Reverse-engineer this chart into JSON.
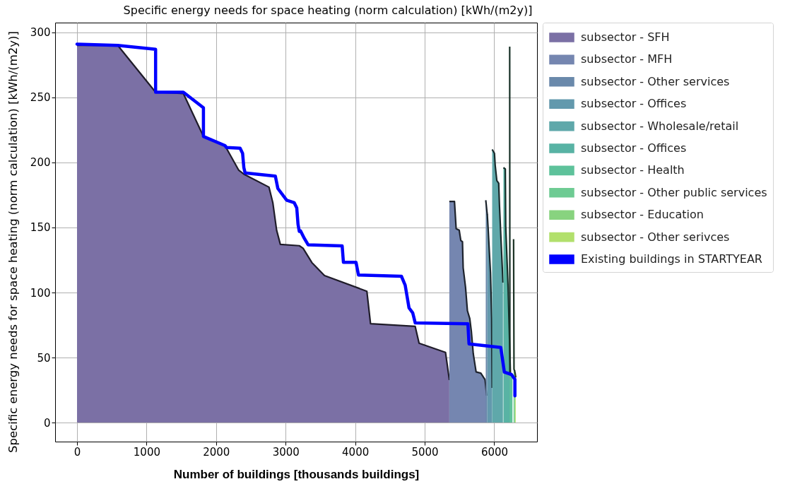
{
  "chart_data": {
    "type": "area",
    "title": "Specific energy needs for space heating (norm calculation) [kWh/(m2y)]",
    "xlabel": "Number of buildings [thousands buildings]",
    "ylabel": "Specific energy needs for space heating (norm calculation) [kWh/(m2y)]",
    "xlim": [
      -315,
      6615
    ],
    "ylim": [
      -14.6,
      307.5
    ],
    "xticks": [
      0,
      1000,
      2000,
      3000,
      4000,
      5000,
      6000
    ],
    "yticks": [
      0,
      50,
      100,
      150,
      200,
      250,
      300
    ],
    "grid": true,
    "legend": "right",
    "series": [
      {
        "name": "subsector - SFH",
        "color": "#7b70a5",
        "x": [
          0,
          586,
          1130,
          1529,
          1818,
          2127,
          2326,
          2399,
          2761,
          2816,
          2870,
          2924,
          3197,
          3251,
          3378,
          3559,
          4168,
          4221,
          4863,
          4919,
          5299,
          5354
        ],
        "values": [
          290,
          290,
          254,
          253,
          220,
          213,
          194,
          191,
          181,
          169,
          148,
          137,
          136,
          134,
          123,
          113,
          101,
          76,
          74,
          61,
          54,
          33
        ]
      },
      {
        "name": "subsector - MFH",
        "color": "#7586b0",
        "x": [
          5354,
          5428,
          5452,
          5496,
          5519,
          5543,
          5553,
          5587,
          5614,
          5648,
          5671,
          5698,
          5739,
          5807,
          5868,
          5891
        ],
        "values": [
          170,
          170,
          149,
          148,
          140,
          139,
          119,
          104,
          86,
          80,
          70,
          53,
          39,
          38,
          33,
          21
        ]
      },
      {
        "name": "subsector - Other services",
        "color": "#6a89ab",
        "x": [
          5878,
          5895,
          5900
        ],
        "values": [
          171,
          162,
          160
        ]
      },
      {
        "name": "subsector - Offices",
        "color": "#6399ad",
        "x": [
          5900,
          5912,
          5946,
          5963,
          5970
        ],
        "values": [
          160,
          149,
          115,
          80,
          27
        ]
      },
      {
        "name": "subsector - Wholesale/retail",
        "color": "#5fa8aa",
        "x": [
          5970,
          6003,
          6013,
          6037,
          6064,
          6075,
          6091,
          6125
        ],
        "values": [
          210,
          207,
          198,
          186,
          184,
          167,
          148,
          108
        ]
      },
      {
        "name": "subsector - Offices",
        "color": "#58b3a4",
        "x": [
          6132,
          6159,
          6165,
          6183,
          6199,
          6216,
          6233
        ],
        "values": [
          196,
          195,
          151,
          126,
          104,
          71,
          37
        ]
      },
      {
        "name": "subsector - Health",
        "color": "#5ec29b",
        "x": [
          6222,
          6225,
          6262
        ],
        "values": [
          289,
          37,
          36
        ]
      },
      {
        "name": "subsector - Other public services",
        "color": "#6ecb93",
        "x": [
          6278,
          6284,
          6292
        ],
        "values": [
          141,
          41,
          40
        ]
      },
      {
        "name": "subsector - Education",
        "color": "#88d37f",
        "x": [
          6292,
          6300
        ],
        "values": [
          40,
          38
        ]
      },
      {
        "name": "subsector - Other serivces",
        "color": "#b2e06c",
        "x": [
          6300,
          6309
        ],
        "values": [
          38,
          35
        ]
      },
      {
        "type": "line",
        "name": "Existing buildings in STARTYEAR",
        "color": "#0000ff",
        "x": [
          0,
          586,
          1130,
          1130,
          1529,
          1818,
          1818,
          2127,
          2150,
          2345,
          2381,
          2399,
          2417,
          2852,
          2888,
          3015,
          3124,
          3160,
          3178,
          3196,
          3214,
          3269,
          3323,
          3813,
          3831,
          4012,
          4048,
          4665,
          4719,
          4774,
          4828,
          4864,
          5621,
          5637,
          6094,
          6145,
          6247,
          6297,
          6297
        ],
        "values": [
          291,
          290,
          287,
          254,
          254,
          242,
          220,
          213,
          211.5,
          211,
          207,
          196,
          192,
          189.5,
          180,
          171,
          169,
          165,
          152.5,
          147,
          147.4,
          141.6,
          136.7,
          135.8,
          123.2,
          123.2,
          113.4,
          112.5,
          105.7,
          88.2,
          84.3,
          76.6,
          76,
          60.5,
          57.8,
          38.8,
          37,
          33.3,
          20.6
        ]
      }
    ]
  }
}
